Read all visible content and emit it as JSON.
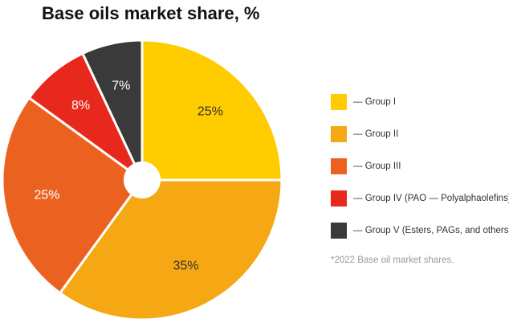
{
  "chart_data": {
    "type": "pie",
    "title": "Base oils market share, %",
    "slices": [
      {
        "label": "— Group I",
        "value": 25,
        "value_label": "25%",
        "color": "#FFCC00"
      },
      {
        "label": "— Group II",
        "value": 35,
        "value_label": "35%",
        "color": "#F5A813"
      },
      {
        "label": "— Group III",
        "value": 25,
        "value_label": "25%",
        "color": "#EB6220"
      },
      {
        "label": "— Group IV (PAO — Polyalphaolefins)",
        "value": 8,
        "value_label": "8%",
        "color": "#E8281C"
      },
      {
        "label": "— Group V (Esters, PAGs, and others)",
        "value": 7,
        "value_label": "7%",
        "color": "#3A3A3A"
      }
    ],
    "legend_position": "right",
    "note": "*2022 Base oil market shares."
  }
}
